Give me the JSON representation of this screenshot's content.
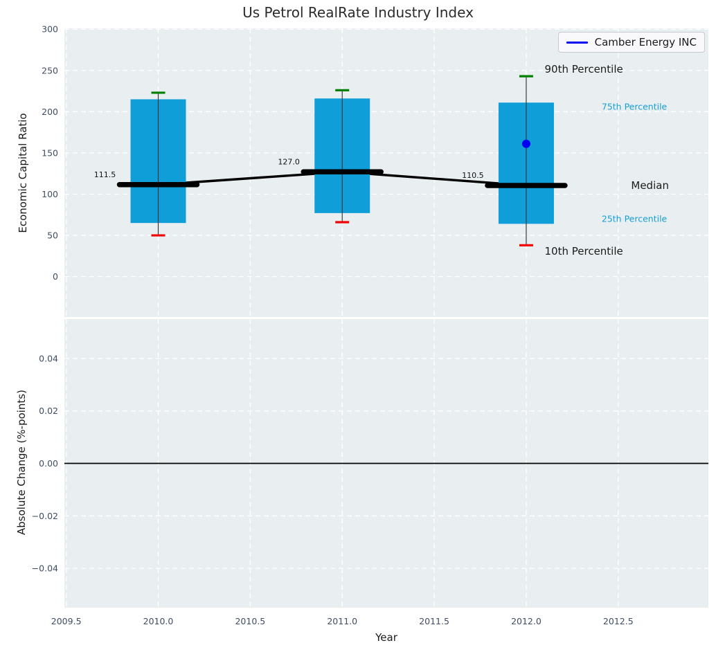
{
  "chart_data": {
    "type": "boxplot",
    "title": "Us Petrol RealRate Industry Index",
    "xlabel": "Year",
    "xlim": [
      2009.49,
      2012.99
    ],
    "xticks": [
      {
        "v": 2009.5,
        "label": "2009.5"
      },
      {
        "v": 2010.0,
        "label": "2010.0"
      },
      {
        "v": 2010.5,
        "label": "2010.5"
      },
      {
        "v": 2011.0,
        "label": "2011.0"
      },
      {
        "v": 2011.5,
        "label": "2011.5"
      },
      {
        "v": 2012.0,
        "label": "2012.0"
      },
      {
        "v": 2012.5,
        "label": "2012.5"
      }
    ],
    "top": {
      "ylabel": "Economic Capital Ratio",
      "ylim": [
        -49,
        301
      ],
      "yticks": [
        {
          "v": 300,
          "label": "300"
        },
        {
          "v": 250,
          "label": "250"
        },
        {
          "v": 200,
          "label": "200"
        },
        {
          "v": 150,
          "label": "150"
        },
        {
          "v": 100,
          "label": "100"
        },
        {
          "v": 50,
          "label": "50"
        },
        {
          "v": 0,
          "label": "0"
        }
      ]
    },
    "bottom": {
      "ylabel": "Absolute Change (%-points)",
      "ylim": [
        -0.055,
        0.055
      ],
      "yticks": [
        {
          "v": 0.04,
          "label": "0.04"
        },
        {
          "v": 0.02,
          "label": "0.02"
        },
        {
          "v": 0.0,
          "label": "0.00"
        },
        {
          "v": -0.02,
          "label": "−0.02"
        },
        {
          "v": -0.04,
          "label": "−0.04"
        }
      ],
      "zero_line": 0.0
    },
    "boxes": [
      {
        "x": 2010,
        "p10": 50,
        "p25": 65,
        "median": 111.5,
        "p75": 215,
        "p90": 223,
        "median_label": "111.5"
      },
      {
        "x": 2011,
        "p10": 66,
        "p25": 77,
        "median": 127.0,
        "p75": 216,
        "p90": 226,
        "median_label": "127.0"
      },
      {
        "x": 2012,
        "p10": 38,
        "p25": 64,
        "median": 110.5,
        "p75": 211,
        "p90": 243,
        "median_label": "110.5"
      }
    ],
    "median_trend": [
      [
        2010,
        111.5
      ],
      [
        2011,
        127.0
      ],
      [
        2012,
        110.5
      ]
    ],
    "company": {
      "label": "Camber Energy INC",
      "x": 2012,
      "y": 161
    },
    "annotations": [
      {
        "label": "90th Percentile",
        "x": 2012.1,
        "y": 252,
        "color": "#1a1a1a",
        "size": 15
      },
      {
        "label": "75th Percentile",
        "x": 2012.41,
        "y": 206,
        "color": "#159fd9",
        "size": 12.5
      },
      {
        "label": "Median",
        "x": 2012.57,
        "y": 111,
        "color": "#1a1a1a",
        "size": 15
      },
      {
        "label": "25th Percentile",
        "x": 2012.41,
        "y": 70,
        "color": "#159fd9",
        "size": 12.5
      },
      {
        "label": "10th Percentile",
        "x": 2012.1,
        "y": 31,
        "color": "#1a1a1a",
        "size": 15
      }
    ],
    "colors": {
      "box": "#109ed9",
      "p90_cap": "#008000",
      "p10_cap": "#f20000",
      "median": "#000000",
      "company": "#0000f0",
      "grid": "#ffffff",
      "panel_bg": "#e9eef1",
      "tick_text": "#3e4d63",
      "whisker": "#3a3a3a"
    }
  }
}
